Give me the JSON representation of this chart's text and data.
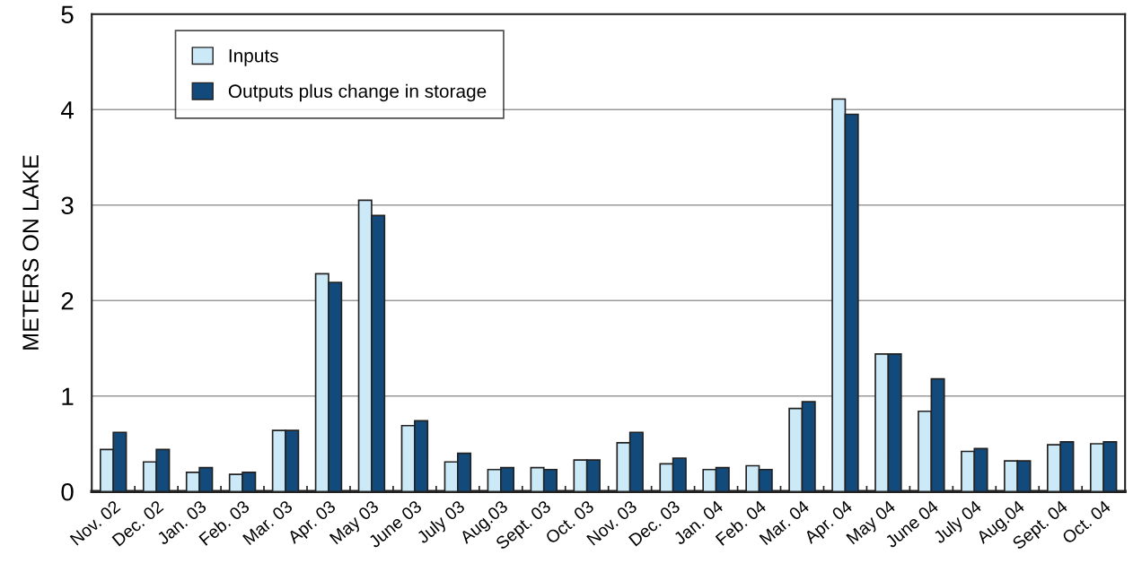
{
  "chart_data": {
    "type": "bar",
    "ylabel": "METERS ON LAKE",
    "categories": [
      "Nov. 02",
      "Dec. 02",
      "Jan. 03",
      "Feb. 03",
      "Mar. 03",
      "Apr. 03",
      "May 03",
      "June 03",
      "July 03",
      "Aug.03",
      "Sept. 03",
      "Oct. 03",
      "Nov. 03",
      "Dec. 03",
      "Jan. 04",
      "Feb. 04",
      "Mar. 04",
      "Apr. 04",
      "May 04",
      "June 04",
      "July 04",
      "Aug.04",
      "Sept. 04",
      "Oct. 04"
    ],
    "series": [
      {
        "name": "Inputs",
        "color": "#cce9f8",
        "values": [
          0.44,
          0.31,
          0.2,
          0.18,
          0.64,
          2.28,
          3.05,
          0.69,
          0.31,
          0.23,
          0.25,
          0.33,
          0.51,
          0.29,
          0.23,
          0.27,
          0.87,
          4.11,
          1.44,
          0.84,
          0.42,
          0.32,
          0.49,
          0.5
        ]
      },
      {
        "name": "Outputs plus change in storage",
        "color": "#124a7c",
        "values": [
          0.62,
          0.44,
          0.25,
          0.2,
          0.64,
          2.19,
          2.89,
          0.74,
          0.4,
          0.25,
          0.23,
          0.33,
          0.62,
          0.35,
          0.25,
          0.23,
          0.94,
          3.95,
          1.44,
          1.18,
          0.45,
          0.32,
          0.52,
          0.52
        ]
      }
    ],
    "ylim": [
      0,
      5
    ],
    "yticks": [
      0,
      1,
      2,
      3,
      4,
      5
    ],
    "grid": "y",
    "legend": "top left"
  }
}
